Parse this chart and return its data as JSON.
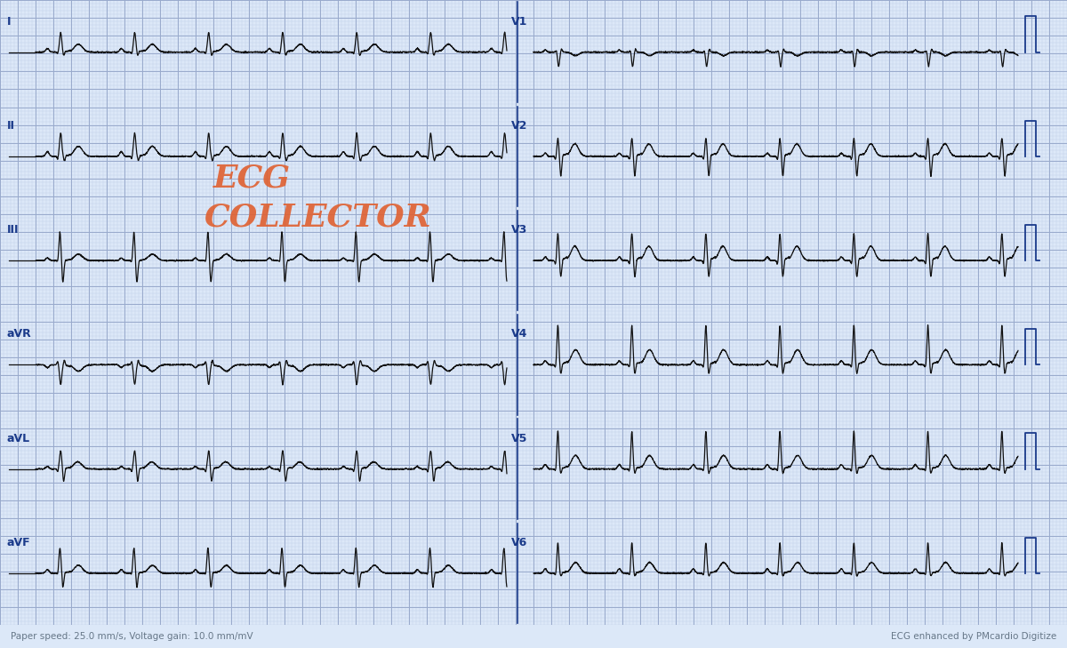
{
  "bg_color": "#dce8f8",
  "grid_major_color": "#99aacc",
  "grid_minor_color": "#c4d3e8",
  "ecg_color": "#111111",
  "label_color": "#1a3a8a",
  "title_line1": "ECG",
  "title_line2": "COLLECTOR",
  "title_color": "#e06030",
  "footer_left": "Paper speed: 25.0 mm/s, Voltage gain: 10.0 mm/mV",
  "footer_right": "ECG enhanced by PMcardio Digitize",
  "footer_color": "#667788",
  "leads_left": [
    "I",
    "II",
    "III",
    "aVR",
    "aVL",
    "aVF"
  ],
  "leads_right": [
    "V1",
    "V2",
    "V3",
    "V4",
    "V5",
    "V6"
  ],
  "figsize": [
    12.0,
    7.29
  ],
  "dpi": 100
}
